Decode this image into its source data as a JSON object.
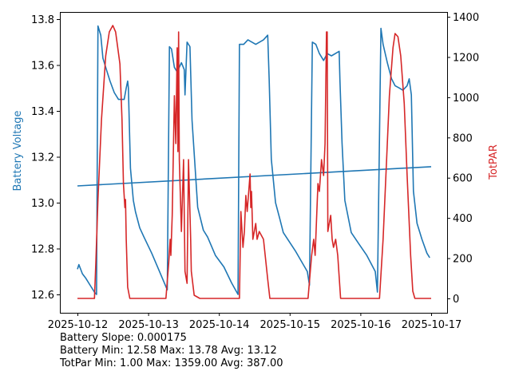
{
  "chart_data": {
    "type": "line",
    "xlabel": "",
    "ylabel": "Battery Voltage",
    "y2label": "TotPAR",
    "x_ticks": [
      "2025-10-12",
      "2025-10-13",
      "2025-10-14",
      "2025-10-15",
      "2025-10-16",
      "2025-10-17"
    ],
    "x_unit": "days since 2025-10-12",
    "xlim": [
      -0.1,
      5.11
    ],
    "ylim": [
      12.52,
      13.84
    ],
    "y2lim": [
      -70,
      1420
    ],
    "y_ticks": [
      "12.6",
      "12.8",
      "13.0",
      "13.2",
      "13.4",
      "13.6",
      "13.8"
    ],
    "y2_ticks": [
      "0",
      "200",
      "400",
      "600",
      "800",
      "1000",
      "1200",
      "1400"
    ],
    "colors": {
      "battery": "#1f77b4",
      "totpar": "#d62728"
    },
    "series": [
      {
        "name": "Battery Voltage",
        "axis": "left",
        "points": [
          [
            0,
            12.71
          ],
          [
            0.02,
            12.73
          ],
          [
            0.07,
            12.69
          ],
          [
            0.12,
            12.67
          ],
          [
            0.18,
            12.64
          ],
          [
            0.24,
            12.61
          ],
          [
            0.27,
            12.6
          ],
          [
            0.29,
            13.77
          ],
          [
            0.33,
            13.73
          ],
          [
            0.36,
            13.63
          ],
          [
            0.41,
            13.58
          ],
          [
            0.46,
            13.53
          ],
          [
            0.52,
            13.48
          ],
          [
            0.58,
            13.45
          ],
          [
            0.66,
            13.45
          ],
          [
            0.69,
            13.5
          ],
          [
            0.71,
            13.53
          ],
          [
            0.72,
            13.5
          ],
          [
            0.75,
            13.15
          ],
          [
            0.79,
            13.01
          ],
          [
            0.82,
            12.96
          ],
          [
            0.88,
            12.89
          ],
          [
            0.94,
            12.85
          ],
          [
            1.05,
            12.78
          ],
          [
            1.16,
            12.7
          ],
          [
            1.27,
            12.62
          ],
          [
            1.3,
            13.68
          ],
          [
            1.33,
            13.67
          ],
          [
            1.37,
            13.59
          ],
          [
            1.41,
            13.57
          ],
          [
            1.47,
            13.61
          ],
          [
            1.51,
            13.58
          ],
          [
            1.52,
            13.47
          ],
          [
            1.55,
            13.7
          ],
          [
            1.59,
            13.68
          ],
          [
            1.62,
            13.36
          ],
          [
            1.7,
            12.98
          ],
          [
            1.78,
            12.88
          ],
          [
            1.84,
            12.85
          ],
          [
            1.95,
            12.77
          ],
          [
            2.07,
            12.72
          ],
          [
            2.18,
            12.65
          ],
          [
            2.27,
            12.6
          ],
          [
            2.29,
            13.69
          ],
          [
            2.35,
            13.69
          ],
          [
            2.41,
            13.71
          ],
          [
            2.52,
            13.69
          ],
          [
            2.63,
            13.71
          ],
          [
            2.69,
            13.73
          ],
          [
            2.71,
            13.54
          ],
          [
            2.74,
            13.19
          ],
          [
            2.8,
            13.0
          ],
          [
            2.86,
            12.93
          ],
          [
            2.91,
            12.87
          ],
          [
            3.08,
            12.79
          ],
          [
            3.25,
            12.7
          ],
          [
            3.28,
            12.64
          ],
          [
            3.32,
            13.7
          ],
          [
            3.37,
            13.69
          ],
          [
            3.42,
            13.65
          ],
          [
            3.48,
            13.62
          ],
          [
            3.53,
            13.65
          ],
          [
            3.59,
            13.64
          ],
          [
            3.7,
            13.66
          ],
          [
            3.71,
            13.54
          ],
          [
            3.74,
            13.26
          ],
          [
            3.78,
            13.01
          ],
          [
            3.87,
            12.87
          ],
          [
            3.98,
            12.82
          ],
          [
            4.09,
            12.77
          ],
          [
            4.21,
            12.7
          ],
          [
            4.24,
            12.61
          ],
          [
            4.29,
            13.76
          ],
          [
            4.32,
            13.69
          ],
          [
            4.38,
            13.61
          ],
          [
            4.44,
            13.54
          ],
          [
            4.49,
            13.51
          ],
          [
            4.55,
            13.5
          ],
          [
            4.6,
            13.49
          ],
          [
            4.66,
            13.51
          ],
          [
            4.69,
            13.54
          ],
          [
            4.72,
            13.47
          ],
          [
            4.75,
            13.05
          ],
          [
            4.8,
            12.91
          ],
          [
            4.87,
            12.84
          ],
          [
            4.94,
            12.78
          ],
          [
            4.98,
            12.76
          ]
        ]
      },
      {
        "name": "Battery Trend",
        "axis": "left",
        "points": [
          [
            0,
            13.073
          ],
          [
            5,
            13.157
          ]
        ]
      },
      {
        "name": "TotPAR",
        "axis": "right",
        "points": [
          [
            0,
            0
          ],
          [
            0.24,
            0
          ],
          [
            0.26,
            175
          ],
          [
            0.29,
            492
          ],
          [
            0.34,
            889
          ],
          [
            0.4,
            1206
          ],
          [
            0.45,
            1325
          ],
          [
            0.5,
            1357
          ],
          [
            0.54,
            1325
          ],
          [
            0.6,
            1166
          ],
          [
            0.63,
            889
          ],
          [
            0.65,
            571
          ],
          [
            0.67,
            452
          ],
          [
            0.68,
            492
          ],
          [
            0.69,
            294
          ],
          [
            0.71,
            56
          ],
          [
            0.74,
            0
          ],
          [
            1.25,
            0
          ],
          [
            1.29,
            175
          ],
          [
            1.31,
            294
          ],
          [
            1.32,
            214
          ],
          [
            1.34,
            413
          ],
          [
            1.37,
            1008
          ],
          [
            1.39,
            770
          ],
          [
            1.41,
            1246
          ],
          [
            1.42,
            730
          ],
          [
            1.43,
            1325
          ],
          [
            1.44,
            690
          ],
          [
            1.47,
            333
          ],
          [
            1.5,
            690
          ],
          [
            1.52,
            135
          ],
          [
            1.55,
            75
          ],
          [
            1.57,
            690
          ],
          [
            1.6,
            294
          ],
          [
            1.61,
            135
          ],
          [
            1.65,
            16
          ],
          [
            1.73,
            0
          ],
          [
            2.29,
            0
          ],
          [
            2.31,
            432
          ],
          [
            2.34,
            254
          ],
          [
            2.36,
            333
          ],
          [
            2.38,
            512
          ],
          [
            2.4,
            432
          ],
          [
            2.44,
            619
          ],
          [
            2.45,
            452
          ],
          [
            2.46,
            532
          ],
          [
            2.48,
            294
          ],
          [
            2.52,
            373
          ],
          [
            2.54,
            294
          ],
          [
            2.57,
            333
          ],
          [
            2.63,
            294
          ],
          [
            2.69,
            95
          ],
          [
            2.72,
            0
          ],
          [
            3.26,
            0
          ],
          [
            3.31,
            214
          ],
          [
            3.34,
            294
          ],
          [
            3.36,
            214
          ],
          [
            3.4,
            571
          ],
          [
            3.42,
            532
          ],
          [
            3.45,
            690
          ],
          [
            3.48,
            611
          ],
          [
            3.5,
            770
          ],
          [
            3.52,
            1325
          ],
          [
            3.53,
            1325
          ],
          [
            3.54,
            333
          ],
          [
            3.58,
            413
          ],
          [
            3.6,
            294
          ],
          [
            3.62,
            254
          ],
          [
            3.65,
            294
          ],
          [
            3.68,
            214
          ],
          [
            3.72,
            0
          ],
          [
            4.27,
            0
          ],
          [
            4.32,
            294
          ],
          [
            4.37,
            690
          ],
          [
            4.41,
            1008
          ],
          [
            4.46,
            1246
          ],
          [
            4.49,
            1317
          ],
          [
            4.53,
            1301
          ],
          [
            4.57,
            1206
          ],
          [
            4.62,
            968
          ],
          [
            4.66,
            611
          ],
          [
            4.71,
            214
          ],
          [
            4.74,
            36
          ],
          [
            4.77,
            0
          ],
          [
            5.0,
            0
          ]
        ]
      }
    ]
  },
  "stats": {
    "slope": "Battery Slope: 0.000175",
    "battery": "Battery Min: 12.58 Max: 13.78 Avg: 13.12",
    "totpar": "TotPar Min: 1.00 Max: 1359.00 Avg: 387.00"
  }
}
